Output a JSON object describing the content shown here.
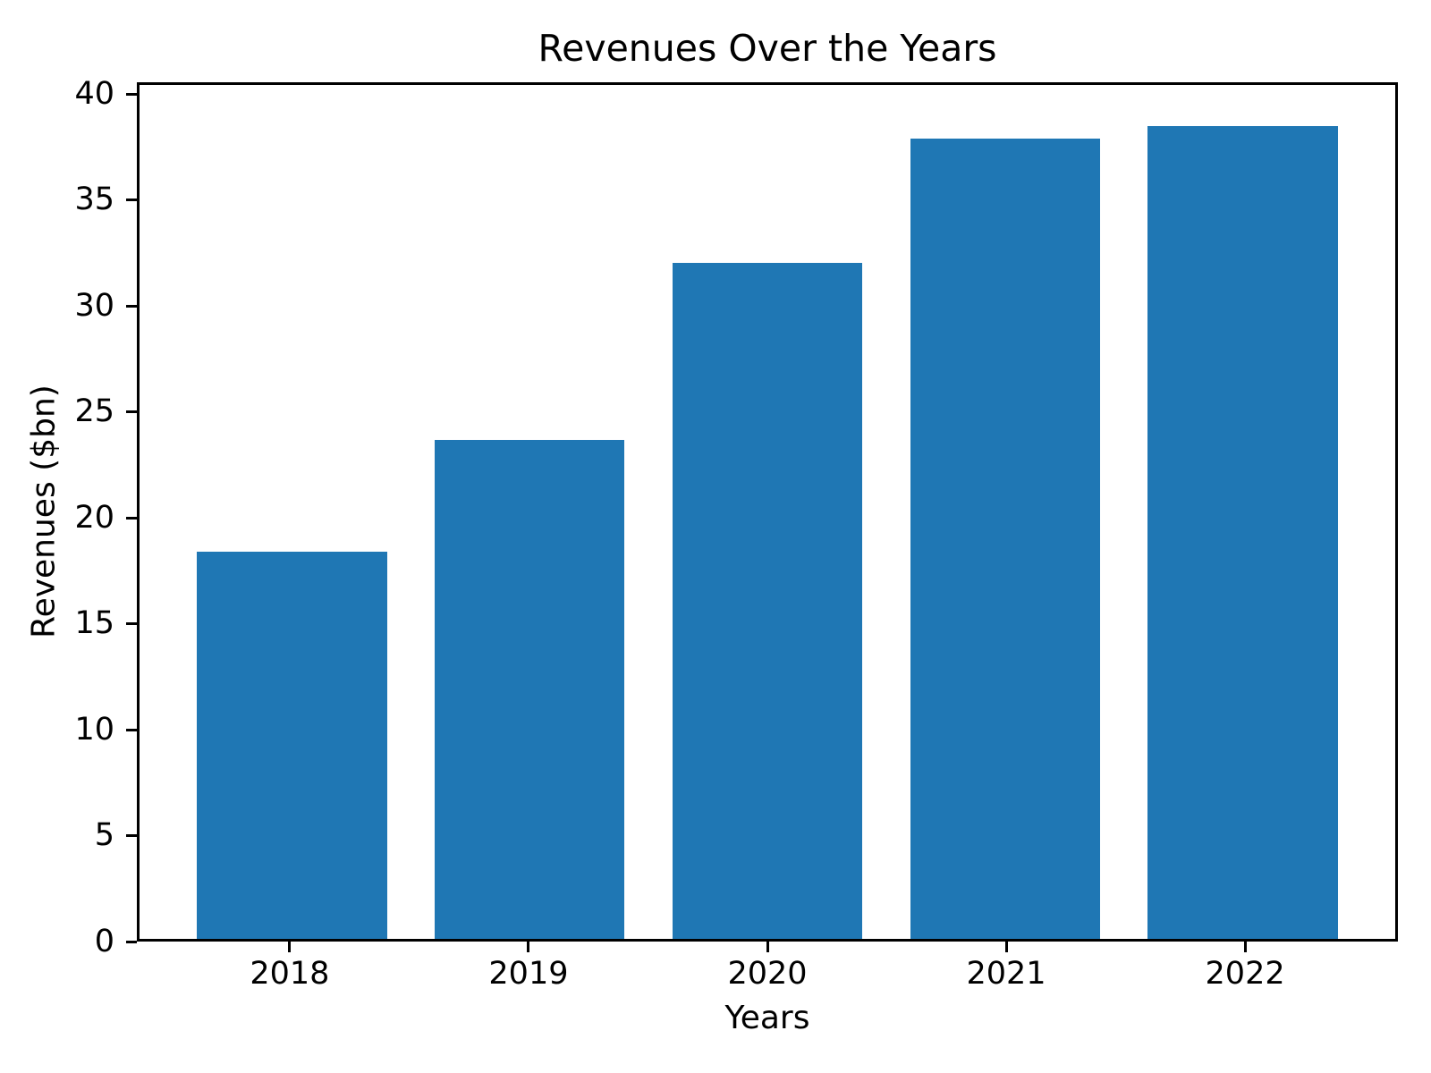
{
  "figure": {
    "background": "#ffffff"
  },
  "chart_data": {
    "type": "bar",
    "title": "Revenues Over the Years",
    "xlabel": "Years",
    "ylabel": "Revenues ($bn)",
    "categories": [
      "2018",
      "2019",
      "2020",
      "2021",
      "2022"
    ],
    "values": [
      18.4,
      23.7,
      32.1,
      38.0,
      38.6
    ],
    "yticks": [
      0,
      5,
      10,
      15,
      20,
      25,
      30,
      35,
      40
    ],
    "ylim": [
      0,
      40.55
    ],
    "xlim": [
      -0.64,
      4.64
    ],
    "bar_width": 0.8,
    "bar_color": "#1f77b4",
    "axis_color": "#000000",
    "text_color": "#000000",
    "grid": false,
    "legend": "none"
  }
}
